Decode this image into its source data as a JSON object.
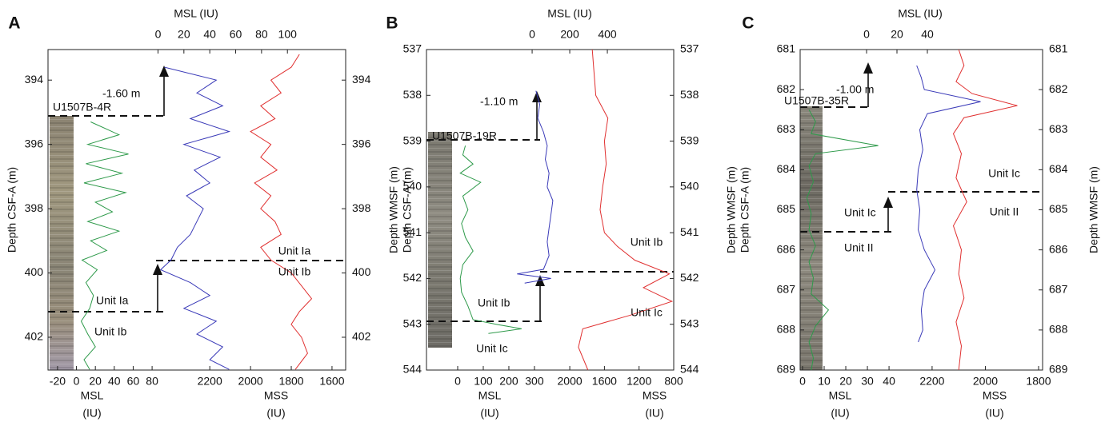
{
  "chart_data": [
    {
      "type": "line",
      "label": "A",
      "top_label": "MSL (IU)",
      "bottom1_label": [
        "MSL",
        "(IU)"
      ],
      "bottom2_label": [
        "MSS",
        "(IU)"
      ],
      "y_labels": [
        "Depth CSF-A (m)"
      ],
      "ylim": [
        403.02,
        393.05
      ],
      "yticks": [
        394,
        396,
        398,
        400,
        402
      ],
      "y2lim": [
        403.02,
        393.05
      ],
      "y2ticks": [
        394,
        396,
        398,
        400,
        402
      ],
      "top": {
        "xlim": [
          -85,
          145
        ],
        "xticks": [
          0,
          20,
          40,
          60,
          80,
          100
        ]
      },
      "bottom1": {
        "xlim": [
          -25,
          85
        ],
        "xticks": [
          -20,
          0,
          20,
          40,
          60,
          80
        ]
      },
      "bottom2": {
        "xlim": [
          2350,
          1533
        ],
        "xticks": [
          2200,
          2000,
          1800,
          1600
        ]
      },
      "series": [
        {
          "color": "#2e9a4a",
          "x_axis": "bottom1",
          "y_axis": "y",
          "depth": [
            395.3,
            395.7,
            396.0,
            396.3,
            396.6,
            396.9,
            397.2,
            397.5,
            397.8,
            398.1,
            398.4,
            398.7,
            399.0,
            399.3,
            399.6,
            399.9,
            400.3,
            400.7,
            401.1,
            401.5,
            401.9,
            402.3,
            402.7,
            403.0
          ],
          "values": [
            15,
            45,
            12,
            55,
            10,
            48,
            8,
            52,
            20,
            38,
            12,
            45,
            15,
            32,
            6,
            22,
            10,
            18,
            14,
            5,
            12,
            20,
            8,
            14
          ]
        },
        {
          "color": "#3a3ab8",
          "x_axis": "top",
          "y_axis": "y2",
          "depth": [
            393.6,
            394.0,
            394.4,
            394.8,
            395.2,
            395.6,
            396.0,
            396.4,
            396.8,
            397.2,
            397.6,
            398.0,
            398.4,
            398.8,
            399.2,
            399.6,
            399.9,
            400.3,
            400.7,
            401.1,
            401.5,
            401.9,
            402.3,
            402.7,
            403.0
          ],
          "values": [
            5,
            45,
            30,
            50,
            25,
            55,
            20,
            48,
            28,
            40,
            22,
            35,
            30,
            25,
            15,
            10,
            2,
            25,
            40,
            20,
            45,
            30,
            50,
            40,
            55
          ]
        },
        {
          "color": "#e03030",
          "x_axis": "bottom2",
          "y_axis": "y2",
          "depth": [
            393.2,
            393.6,
            394.0,
            394.4,
            394.8,
            395.2,
            395.6,
            396.0,
            396.4,
            396.8,
            397.2,
            397.6,
            398.0,
            398.4,
            398.8,
            399.2,
            399.6,
            400.0,
            400.4,
            400.8,
            401.2,
            401.6,
            402.0,
            402.5,
            403.0
          ],
          "values": [
            1760,
            1800,
            1900,
            1850,
            1950,
            1880,
            2000,
            1900,
            1950,
            1870,
            1980,
            1900,
            1950,
            1880,
            1850,
            1950,
            1900,
            1800,
            1750,
            1700,
            1760,
            1800,
            1750,
            1720,
            1780
          ]
        }
      ],
      "annotations": [
        "-1.60 m",
        "U1507B-4R",
        "Unit Ia",
        "Unit Ib",
        "Unit Ia",
        "Unit Ib"
      ]
    },
    {
      "type": "line",
      "label": "B",
      "top_label": "MSL (IU)",
      "bottom1_label": [
        "MSL",
        "(IU)"
      ],
      "bottom2_label": [
        "MSS",
        "(IU)"
      ],
      "y_labels": [
        "Depth WMSF (m)",
        "Depth CSF-A (m)"
      ],
      "ylim": [
        544,
        537
      ],
      "yticks": [
        537,
        538,
        539,
        540,
        541,
        542,
        543,
        544
      ],
      "y2lim": [
        544,
        537
      ],
      "y2ticks": [
        537,
        538,
        539,
        540,
        541,
        542,
        543,
        544
      ],
      "top": {
        "xlim": [
          -562,
          753
        ],
        "xticks": [
          0,
          200,
          400
        ]
      },
      "bottom1": {
        "xlim": [
          -122,
          369
        ],
        "xticks": [
          0,
          100,
          200,
          300
        ]
      },
      "bottom2": {
        "xlim": [
          2204,
          800
        ],
        "xticks": [
          2000,
          1600,
          1200,
          800
        ]
      },
      "series": [
        {
          "color": "#2e9a4a",
          "x_axis": "bottom1",
          "y_axis": "y",
          "depth": [
            539.1,
            539.3,
            539.5,
            539.7,
            539.9,
            540.2,
            540.5,
            540.8,
            541.1,
            541.4,
            541.7,
            542.0,
            542.3,
            542.6,
            542.9,
            543.0,
            543.1,
            543.2
          ],
          "values": [
            30,
            20,
            60,
            10,
            90,
            20,
            40,
            15,
            30,
            60,
            20,
            10,
            15,
            40,
            60,
            150,
            250,
            120
          ]
        },
        {
          "color": "#3a3ab8",
          "x_axis": "top",
          "y_axis": "y2",
          "depth": [
            537.9,
            538.2,
            538.5,
            538.8,
            539.1,
            539.4,
            539.7,
            540.0,
            540.3,
            540.6,
            540.9,
            541.2,
            541.5,
            541.8,
            541.9,
            542.0,
            542.1
          ],
          "values": [
            20,
            40,
            30,
            60,
            80,
            70,
            90,
            80,
            110,
            100,
            90,
            80,
            90,
            60,
            -80,
            100,
            -40
          ]
        },
        {
          "color": "#e03030",
          "x_axis": "bottom2",
          "y_axis": "y2",
          "depth": [
            537.0,
            537.5,
            538.0,
            538.5,
            539.0,
            539.5,
            540.0,
            540.5,
            541.0,
            541.3,
            541.6,
            541.9,
            542.2,
            542.5,
            542.8,
            543.1,
            543.5,
            544.0
          ],
          "values": [
            1740,
            1720,
            1700,
            1560,
            1600,
            1580,
            1620,
            1650,
            1600,
            1450,
            1250,
            850,
            1150,
            820,
            1300,
            1850,
            1900,
            1790
          ]
        }
      ],
      "annotations": [
        "-1.10 m",
        "U1507B-19R",
        "Unit Ib",
        "Unit Ic",
        "Unit Ib",
        "Unit Ic"
      ]
    },
    {
      "type": "line",
      "label": "C",
      "top_label": "MSL (IU)",
      "bottom1_label": [
        "MSL",
        "(IU)"
      ],
      "bottom2_label": [
        "MSS",
        "(IU)"
      ],
      "y_labels": [
        "Depth WMSF (m)",
        "Depth CSF-A (m)"
      ],
      "y2_label": "Depth WMSF (m)",
      "ylim": [
        689,
        681
      ],
      "yticks": [
        681,
        682,
        683,
        684,
        685,
        686,
        687,
        688,
        689
      ],
      "y2lim": [
        689,
        681
      ],
      "y2ticks": [
        681,
        682,
        683,
        684,
        685,
        686,
        687,
        688,
        689
      ],
      "top": {
        "xlim": [
          -43.7,
          115.8
        ],
        "xticks": [
          0,
          20,
          40
        ]
      },
      "bottom1": {
        "xlim": [
          -1.1,
          43.3
        ],
        "xticks": [
          0,
          10,
          20,
          30,
          40
        ]
      },
      "bottom2": {
        "xlim": [
          2335,
          1785
        ],
        "xticks": [
          2200,
          2000,
          1800
        ]
      },
      "series": [
        {
          "color": "#2e9a4a",
          "x_axis": "bottom1",
          "y_axis": "y",
          "depth": [
            682.5,
            682.8,
            683.1,
            683.4,
            683.6,
            683.9,
            684.3,
            684.7,
            685.1,
            685.5,
            685.9,
            686.3,
            686.7,
            687.1,
            687.5,
            687.9,
            688.3,
            688.7,
            689.0
          ],
          "values": [
            3,
            6,
            4,
            35,
            6,
            3,
            5,
            2,
            4,
            3,
            6,
            3,
            5,
            4,
            12,
            6,
            3,
            5,
            4
          ]
        },
        {
          "color": "#3a3ab8",
          "x_axis": "top",
          "y_axis": "y2",
          "depth": [
            681.4,
            681.7,
            682.0,
            682.3,
            682.6,
            683.0,
            683.5,
            684.0,
            684.5,
            685.0,
            685.5,
            686.0,
            686.5,
            687.0,
            687.5,
            688.0,
            688.3
          ],
          "values": [
            33,
            36,
            38,
            75,
            40,
            35,
            37,
            34,
            33,
            35,
            34,
            38,
            45,
            38,
            36,
            37,
            34
          ]
        },
        {
          "color": "#e03030",
          "x_axis": "bottom2",
          "y_axis": "y2",
          "depth": [
            681.0,
            681.4,
            681.8,
            682.1,
            682.4,
            682.7,
            683.1,
            683.6,
            684.2,
            684.8,
            685.4,
            686.0,
            686.6,
            687.2,
            687.8,
            688.4,
            689.0
          ],
          "values": [
            2100,
            2080,
            2110,
            2050,
            1880,
            2080,
            2120,
            2090,
            2110,
            2070,
            2120,
            2090,
            2100,
            2080,
            2110,
            2090,
            2100
          ]
        }
      ],
      "annotations": [
        "-1.00 m",
        "U1507B-35R",
        "Unit Ic",
        "Unit II",
        "Unit Ic",
        "Unit II"
      ]
    }
  ]
}
